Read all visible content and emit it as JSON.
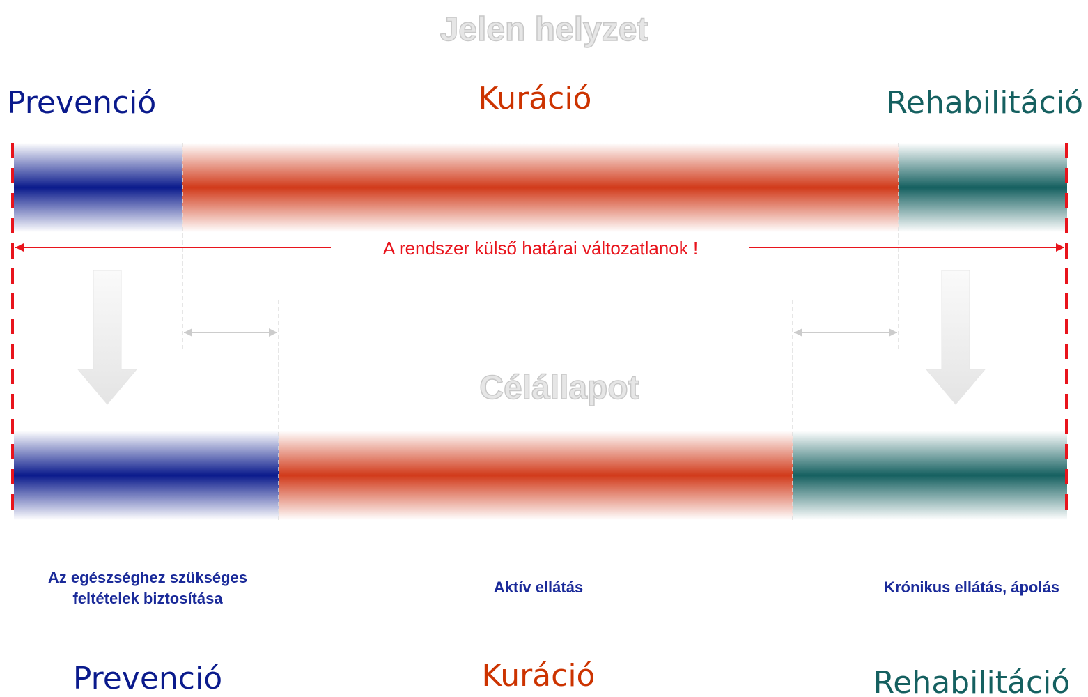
{
  "title": "Jelen helyzet",
  "top_labels": [
    "Prevenció",
    "Kuráció",
    "Rehabilitáció"
  ],
  "boundary_note": "A rendszer külső határai változatlanok !",
  "subtitle": "Célállapot",
  "descriptions": [
    "Az egészséghez szükséges",
    "feltételek biztosítása",
    "Aktív ellátás",
    "Krónikus ellátás, ápolás"
  ],
  "bottom_labels": [
    "Prevenció",
    "Kuráció",
    "Rehabilitáció"
  ]
}
